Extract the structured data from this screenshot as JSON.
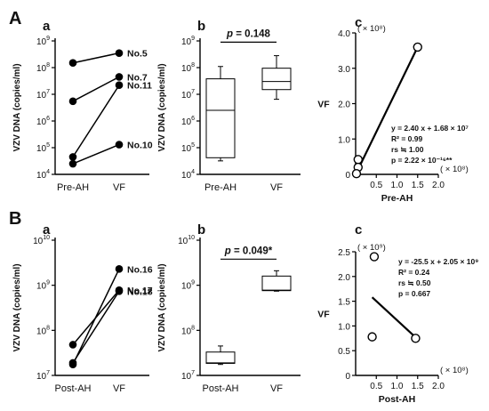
{
  "panels": {
    "A": {
      "letter": "A"
    },
    "B": {
      "letter": "B"
    }
  },
  "chart_data": [
    {
      "id": "Aa",
      "panel_label": "a",
      "type": "line",
      "ylabel": "VZV DNA (copies/ml)",
      "ylog": true,
      "ylim": [
        10000,
        1000000000
      ],
      "yticks": [
        {
          "value": 1000000000,
          "base": "10",
          "exp": "9"
        },
        {
          "value": 100000000,
          "base": "10",
          "exp": "8"
        },
        {
          "value": 10000000,
          "base": "10",
          "exp": "7"
        },
        {
          "value": 1000000,
          "base": "10",
          "exp": "6"
        },
        {
          "value": 100000,
          "base": "10",
          "exp": "5"
        },
        {
          "value": 10000,
          "base": "10",
          "exp": "4"
        }
      ],
      "categories": [
        "Pre-AH",
        "VF"
      ],
      "series": [
        {
          "name": "No.5",
          "values": [
            150000000,
            350000000
          ]
        },
        {
          "name": "No.7",
          "values": [
            5500000,
            45000000
          ]
        },
        {
          "name": "No.11",
          "values": [
            45000,
            22000000
          ]
        },
        {
          "name": "No.10",
          "values": [
            25000,
            130000
          ]
        }
      ]
    },
    {
      "id": "Ab",
      "panel_label": "b",
      "type": "box",
      "ylabel": "VZV DNA (copies/ml)",
      "ylog": true,
      "ylim": [
        10000,
        1000000000
      ],
      "yticks": [
        {
          "value": 1000000000,
          "base": "10",
          "exp": "9"
        },
        {
          "value": 100000000,
          "base": "10",
          "exp": "8"
        },
        {
          "value": 10000000,
          "base": "10",
          "exp": "7"
        },
        {
          "value": 1000000,
          "base": "10",
          "exp": "6"
        },
        {
          "value": 100000,
          "base": "10",
          "exp": "5"
        },
        {
          "value": 10000,
          "base": "10",
          "exp": "4"
        }
      ],
      "categories": [
        "Pre-AH",
        "VF"
      ],
      "boxes": [
        {
          "category": "Pre-AH",
          "min": 32000,
          "q1": 42000,
          "median": 2500000,
          "q3": 38000000,
          "max": 110000000
        },
        {
          "category": "VF",
          "min": 6500000,
          "q1": 15000000,
          "median": 30000000,
          "q3": 95000000,
          "max": 280000000
        }
      ],
      "annotation": {
        "p_label": "p",
        "p_value": " = 0.148",
        "level": 900000000
      }
    },
    {
      "id": "Ac",
      "panel_label": "c",
      "type": "scatter",
      "xlabel": "Pre-AH",
      "ylabel": "VF",
      "xlim": [
        0,
        2.0
      ],
      "ylim": [
        0,
        4.0
      ],
      "xticks": [
        "0.5",
        "1.0",
        "1.5",
        "2.0"
      ],
      "yticks": [
        "0",
        "1.0",
        "2.0",
        "3.0",
        "4.0"
      ],
      "x_scale_note": "( × 10⁸)",
      "y_scale_note": "( × 10⁸)",
      "points": [
        [
          1.5,
          3.6
        ],
        [
          0.06,
          0.42
        ],
        [
          0.06,
          0.2
        ],
        [
          0.02,
          0.02
        ]
      ],
      "fit_line": [
        [
          0.0,
          0.0
        ],
        [
          1.5,
          3.6
        ]
      ],
      "stats": [
        "y = 2.40 x + 1.68 × 10⁷",
        "R² = 0.99",
        "rs ≒ 1.00",
        "p = 2.22 × 10⁻¹⁶**"
      ]
    },
    {
      "id": "Ba",
      "panel_label": "a",
      "type": "line",
      "ylabel": "VZV DNA (copies/ml)",
      "ylog": true,
      "ylim": [
        10000000,
        10000000000
      ],
      "yticks": [
        {
          "value": 10000000000,
          "base": "10",
          "exp": "10"
        },
        {
          "value": 1000000000,
          "base": "10",
          "exp": "9"
        },
        {
          "value": 100000000,
          "base": "10",
          "exp": "8"
        },
        {
          "value": 10000000,
          "base": "10",
          "exp": "7"
        }
      ],
      "categories": [
        "Post-AH",
        "VF"
      ],
      "series": [
        {
          "name": "No.16",
          "values": [
            17500000,
            2300000000
          ]
        },
        {
          "name": "No.17",
          "values": [
            48000000,
            780000000
          ]
        },
        {
          "name": "No.18",
          "values": [
            19000000,
            740000000
          ]
        }
      ]
    },
    {
      "id": "Bb",
      "panel_label": "b",
      "type": "box",
      "ylabel": "VZV DNA (copies/ml)",
      "ylog": true,
      "ylim": [
        10000000,
        10000000000
      ],
      "yticks": [
        {
          "value": 10000000000,
          "base": "10",
          "exp": "10"
        },
        {
          "value": 1000000000,
          "base": "10",
          "exp": "9"
        },
        {
          "value": 100000000,
          "base": "10",
          "exp": "8"
        },
        {
          "value": 10000000,
          "base": "10",
          "exp": "7"
        }
      ],
      "categories": [
        "Post-AH",
        "VF"
      ],
      "boxes": [
        {
          "category": "Post-AH",
          "min": 17500000,
          "q1": 18500000,
          "median": 19000000,
          "q3": 33000000,
          "max": 45000000
        },
        {
          "category": "VF",
          "min": 740000000,
          "q1": 760000000,
          "median": 780000000,
          "q3": 1600000000,
          "max": 2100000000
        }
      ],
      "annotation": {
        "p_label": "p",
        "p_value": " = 0.049*",
        "level": 3800000000
      }
    },
    {
      "id": "Bc",
      "panel_label": "c",
      "type": "scatter",
      "xlabel": "Post-AH",
      "ylabel": "VF",
      "xlim": [
        0,
        2.0
      ],
      "ylim": [
        0,
        2.5
      ],
      "xticks": [
        "0.5",
        "1.0",
        "1.5",
        "2.0"
      ],
      "yticks": [
        "0",
        "0.5",
        "1.0",
        "1.5",
        "2.0",
        "2.5"
      ],
      "x_scale_note": "( × 10⁸)",
      "y_scale_note": "( × 10⁹)",
      "points": [
        [
          0.45,
          2.4
        ],
        [
          0.4,
          0.78
        ],
        [
          1.45,
          0.75
        ]
      ],
      "fit_line": [
        [
          0.4,
          1.58
        ],
        [
          1.45,
          0.77
        ]
      ],
      "stats": [
        "y = -25.5 x + 2.05 × 10⁹",
        "R² = 0.24",
        "rs ≒ 0.50",
        "p = 0.667"
      ]
    }
  ]
}
